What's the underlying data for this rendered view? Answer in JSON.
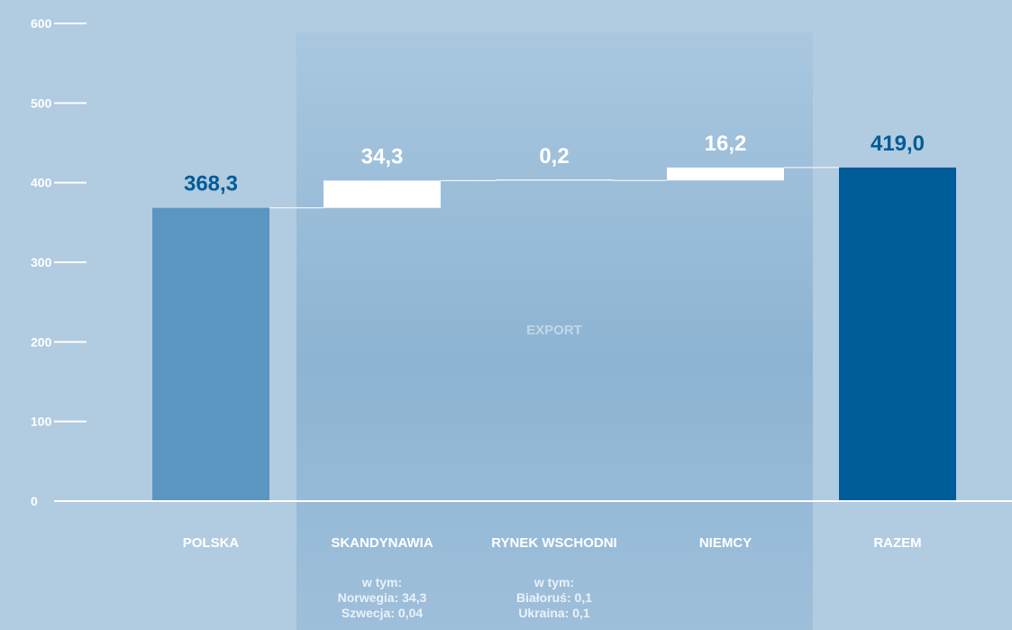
{
  "chart_data": {
    "type": "bar",
    "subtype": "waterfall",
    "ylim": [
      0,
      600
    ],
    "yticks": [
      0,
      100,
      200,
      300,
      400,
      500,
      600
    ],
    "grid": false,
    "categories": [
      "POLSKA",
      "SKANDYNAWIA",
      "RYNEK WSCHODNI",
      "NIEMCY",
      "RAZEM"
    ],
    "bars": [
      {
        "category": "POLSKA",
        "base": 0,
        "value": 368.3,
        "label": "368,3",
        "kind": "total"
      },
      {
        "category": "SKANDYNAWIA",
        "base": 368.3,
        "value": 34.3,
        "label": "34,3",
        "kind": "increment"
      },
      {
        "category": "RYNEK WSCHODNI",
        "base": 402.6,
        "value": 0.2,
        "label": "0,2",
        "kind": "increment"
      },
      {
        "category": "NIEMCY",
        "base": 402.8,
        "value": 16.2,
        "label": "16,2",
        "kind": "increment"
      },
      {
        "category": "RAZEM",
        "base": 0,
        "value": 419.0,
        "label": "419,0",
        "kind": "grand-total"
      }
    ],
    "region_label": "EXPORT",
    "region_categories": [
      "SKANDYNAWIA",
      "RYNEK WSCHODNI",
      "NIEMCY"
    ],
    "notes": [
      {
        "category": "SKANDYNAWIA",
        "lines": [
          "w tym:",
          "Norwegia: 34,3",
          "Szwecja: 0,04"
        ]
      },
      {
        "category": "RYNEK WSCHODNI",
        "lines": [
          "w tym:",
          "Białoruś: 0,1",
          "Ukraina: 0,1"
        ]
      }
    ],
    "colors": {
      "background": "#b1cbe0",
      "region": "#8fb5d4",
      "total": "#5b95c2",
      "grand_total": "#005b99",
      "increment": "#ffffff",
      "value_label": "#005b99",
      "increment_label": "#ffffff"
    }
  }
}
